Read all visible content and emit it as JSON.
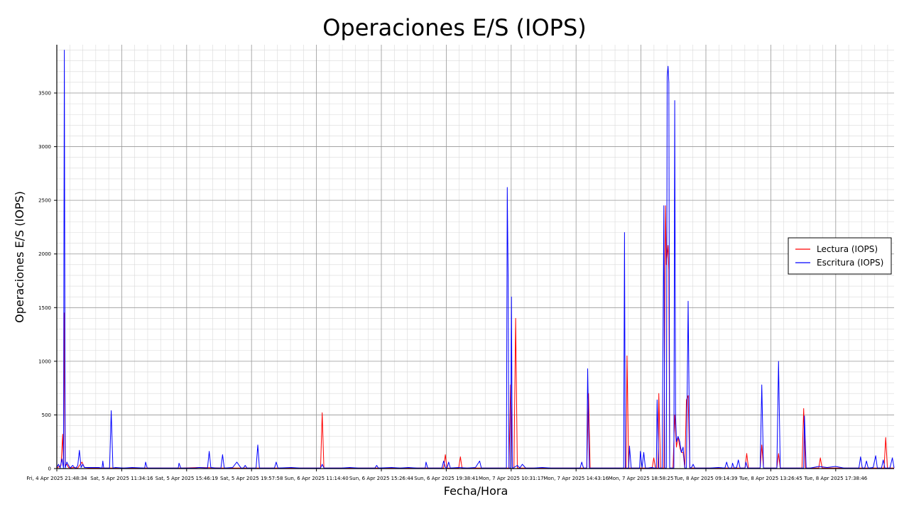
{
  "chart_data": {
    "type": "line",
    "title": "Operaciones E/S (IOPS)",
    "xlabel": "Fecha/Hora",
    "ylabel": "Operaciones E/S (IOPS)",
    "ylim": [
      0,
      3950
    ],
    "yticks": [
      0,
      500,
      1000,
      1500,
      2000,
      2500,
      3000,
      3500
    ],
    "xticks": [
      "Fri, 4 Apr 2025 21:48:34",
      "Sat, 5 Apr 2025 11:34:16",
      "Sat, 5 Apr 2025 15:46:19",
      "Sat, 5 Apr 2025 19:57:58",
      "Sun, 6 Apr 2025 11:14:40",
      "Sun, 6 Apr 2025 15:26:44",
      "Sun, 6 Apr 2025 19:38:41",
      "Mon, 7 Apr 2025 10:31:17",
      "Mon, 7 Apr 2025 14:43:16",
      "Mon, 7 Apr 2025 18:58:25",
      "Tue, 8 Apr 2025 09:14:39",
      "Tue, 8 Apr 2025 13:26:45",
      "Tue, 8 Apr 2025 17:38:46"
    ],
    "xrange": [
      0,
      1000
    ],
    "grid": true,
    "legend_position": "center-right",
    "series": [
      {
        "name": "Lectura (IOPS)",
        "color": "#ff0000",
        "points": [
          [
            0,
            5
          ],
          [
            5,
            30
          ],
          [
            7,
            320
          ],
          [
            8,
            20
          ],
          [
            9,
            1450
          ],
          [
            10,
            30
          ],
          [
            12,
            40
          ],
          [
            14,
            10
          ],
          [
            16,
            5
          ],
          [
            20,
            10
          ],
          [
            25,
            5
          ],
          [
            30,
            60
          ],
          [
            33,
            10
          ],
          [
            40,
            5
          ],
          [
            50,
            5
          ],
          [
            60,
            5
          ],
          [
            70,
            5
          ],
          [
            80,
            5
          ],
          [
            90,
            5
          ],
          [
            100,
            5
          ],
          [
            120,
            5
          ],
          [
            150,
            5
          ],
          [
            170,
            10
          ],
          [
            200,
            5
          ],
          [
            220,
            5
          ],
          [
            250,
            5
          ],
          [
            280,
            5
          ],
          [
            300,
            5
          ],
          [
            315,
            5
          ],
          [
            317,
            520
          ],
          [
            319,
            5
          ],
          [
            340,
            5
          ],
          [
            360,
            5
          ],
          [
            380,
            5
          ],
          [
            400,
            5
          ],
          [
            430,
            5
          ],
          [
            450,
            5
          ],
          [
            462,
            5
          ],
          [
            464,
            130
          ],
          [
            466,
            5
          ],
          [
            480,
            5
          ],
          [
            482,
            110
          ],
          [
            484,
            5
          ],
          [
            500,
            5
          ],
          [
            530,
            5
          ],
          [
            540,
            5
          ],
          [
            542,
            780
          ],
          [
            544,
            5
          ],
          [
            546,
            5
          ],
          [
            548,
            1400
          ],
          [
            550,
            5
          ],
          [
            570,
            5
          ],
          [
            590,
            5
          ],
          [
            610,
            5
          ],
          [
            630,
            5
          ],
          [
            633,
            5
          ],
          [
            635,
            700
          ],
          [
            637,
            5
          ],
          [
            660,
            5
          ],
          [
            680,
            5
          ],
          [
            681,
            1050
          ],
          [
            683,
            5
          ],
          [
            700,
            5
          ],
          [
            711,
            5
          ],
          [
            713,
            100
          ],
          [
            715,
            5
          ],
          [
            718,
            5
          ],
          [
            719,
            700
          ],
          [
            721,
            5
          ],
          [
            725,
            5
          ],
          [
            727,
            2450
          ],
          [
            728,
            1900
          ],
          [
            730,
            2080
          ],
          [
            731,
            1850
          ],
          [
            732,
            5
          ],
          [
            734,
            5
          ],
          [
            736,
            5
          ],
          [
            738,
            500
          ],
          [
            740,
            200
          ],
          [
            742,
            300
          ],
          [
            744,
            200
          ],
          [
            746,
            150
          ],
          [
            748,
            150
          ],
          [
            750,
            5
          ],
          [
            752,
            640
          ],
          [
            754,
            680
          ],
          [
            756,
            5
          ],
          [
            780,
            5
          ],
          [
            800,
            5
          ],
          [
            822,
            5
          ],
          [
            824,
            140
          ],
          [
            826,
            5
          ],
          [
            840,
            5
          ],
          [
            842,
            220
          ],
          [
            844,
            5
          ],
          [
            860,
            5
          ],
          [
            862,
            140
          ],
          [
            864,
            5
          ],
          [
            890,
            5
          ],
          [
            892,
            560
          ],
          [
            894,
            5
          ],
          [
            910,
            5
          ],
          [
            912,
            100
          ],
          [
            914,
            5
          ],
          [
            930,
            5
          ],
          [
            960,
            5
          ],
          [
            980,
            5
          ],
          [
            988,
            5
          ],
          [
            990,
            290
          ],
          [
            992,
            5
          ],
          [
            1000,
            5
          ]
        ]
      },
      {
        "name": "Escritura (IOPS)",
        "color": "#0000ff",
        "points": [
          [
            0,
            10
          ],
          [
            2,
            40
          ],
          [
            4,
            5
          ],
          [
            6,
            90
          ],
          [
            8,
            5
          ],
          [
            9,
            3900
          ],
          [
            10,
            5
          ],
          [
            12,
            60
          ],
          [
            14,
            30
          ],
          [
            16,
            5
          ],
          [
            19,
            30
          ],
          [
            21,
            10
          ],
          [
            23,
            5
          ],
          [
            25,
            30
          ],
          [
            27,
            170
          ],
          [
            29,
            10
          ],
          [
            31,
            40
          ],
          [
            33,
            10
          ],
          [
            40,
            10
          ],
          [
            50,
            10
          ],
          [
            54,
            5
          ],
          [
            55,
            70
          ],
          [
            56,
            5
          ],
          [
            63,
            5
          ],
          [
            65,
            540
          ],
          [
            67,
            5
          ],
          [
            70,
            10
          ],
          [
            80,
            5
          ],
          [
            90,
            10
          ],
          [
            105,
            5
          ],
          [
            106,
            60
          ],
          [
            108,
            5
          ],
          [
            120,
            5
          ],
          [
            130,
            5
          ],
          [
            140,
            5
          ],
          [
            145,
            5
          ],
          [
            146,
            50
          ],
          [
            148,
            5
          ],
          [
            165,
            5
          ],
          [
            170,
            10
          ],
          [
            180,
            5
          ],
          [
            182,
            160
          ],
          [
            184,
            10
          ],
          [
            190,
            5
          ],
          [
            196,
            5
          ],
          [
            198,
            130
          ],
          [
            200,
            5
          ],
          [
            210,
            10
          ],
          [
            215,
            60
          ],
          [
            220,
            5
          ],
          [
            223,
            5
          ],
          [
            225,
            30
          ],
          [
            227,
            5
          ],
          [
            235,
            5
          ],
          [
            238,
            5
          ],
          [
            240,
            220
          ],
          [
            242,
            5
          ],
          [
            250,
            5
          ],
          [
            260,
            5
          ],
          [
            262,
            60
          ],
          [
            264,
            5
          ],
          [
            280,
            10
          ],
          [
            290,
            5
          ],
          [
            300,
            5
          ],
          [
            315,
            5
          ],
          [
            317,
            40
          ],
          [
            319,
            5
          ],
          [
            330,
            5
          ],
          [
            340,
            5
          ],
          [
            350,
            10
          ],
          [
            360,
            5
          ],
          [
            380,
            5
          ],
          [
            382,
            30
          ],
          [
            384,
            5
          ],
          [
            400,
            10
          ],
          [
            410,
            5
          ],
          [
            420,
            10
          ],
          [
            430,
            5
          ],
          [
            440,
            5
          ],
          [
            441,
            60
          ],
          [
            443,
            5
          ],
          [
            460,
            5
          ],
          [
            462,
            70
          ],
          [
            464,
            10
          ],
          [
            466,
            5
          ],
          [
            468,
            60
          ],
          [
            470,
            5
          ],
          [
            480,
            10
          ],
          [
            490,
            5
          ],
          [
            500,
            10
          ],
          [
            505,
            70
          ],
          [
            507,
            5
          ],
          [
            520,
            5
          ],
          [
            535,
            5
          ],
          [
            537,
            5
          ],
          [
            538,
            2620
          ],
          [
            539,
            1800
          ],
          [
            540,
            5
          ],
          [
            542,
            5
          ],
          [
            543,
            1600
          ],
          [
            544,
            5
          ],
          [
            545,
            5
          ],
          [
            550,
            30
          ],
          [
            553,
            5
          ],
          [
            556,
            40
          ],
          [
            560,
            5
          ],
          [
            570,
            5
          ],
          [
            580,
            10
          ],
          [
            590,
            5
          ],
          [
            600,
            5
          ],
          [
            610,
            5
          ],
          [
            620,
            5
          ],
          [
            625,
            5
          ],
          [
            627,
            60
          ],
          [
            629,
            5
          ],
          [
            633,
            5
          ],
          [
            634,
            930
          ],
          [
            636,
            5
          ],
          [
            650,
            5
          ],
          [
            660,
            5
          ],
          [
            665,
            5
          ],
          [
            670,
            5
          ],
          [
            675,
            5
          ],
          [
            677,
            5
          ],
          [
            678,
            2200
          ],
          [
            679,
            5
          ],
          [
            681,
            5
          ],
          [
            683,
            5
          ],
          [
            684,
            210
          ],
          [
            686,
            5
          ],
          [
            690,
            5
          ],
          [
            696,
            5
          ],
          [
            697,
            160
          ],
          [
            699,
            5
          ],
          [
            701,
            150
          ],
          [
            703,
            5
          ],
          [
            706,
            5
          ],
          [
            710,
            10
          ],
          [
            714,
            5
          ],
          [
            716,
            5
          ],
          [
            717,
            640
          ],
          [
            719,
            5
          ],
          [
            723,
            5
          ],
          [
            725,
            2450
          ],
          [
            726,
            5
          ],
          [
            728,
            5
          ],
          [
            729,
            3650
          ],
          [
            730,
            3750
          ],
          [
            731,
            3600
          ],
          [
            732,
            5
          ],
          [
            735,
            5
          ],
          [
            737,
            5
          ],
          [
            738,
            3430
          ],
          [
            739,
            500
          ],
          [
            740,
            250
          ],
          [
            742,
            300
          ],
          [
            744,
            250
          ],
          [
            746,
            150
          ],
          [
            748,
            200
          ],
          [
            750,
            5
          ],
          [
            752,
            5
          ],
          [
            754,
            1560
          ],
          [
            756,
            5
          ],
          [
            758,
            10
          ],
          [
            760,
            40
          ],
          [
            762,
            5
          ],
          [
            780,
            5
          ],
          [
            790,
            10
          ],
          [
            798,
            5
          ],
          [
            800,
            60
          ],
          [
            802,
            5
          ],
          [
            806,
            5
          ],
          [
            807,
            50
          ],
          [
            809,
            5
          ],
          [
            812,
            10
          ],
          [
            814,
            80
          ],
          [
            816,
            5
          ],
          [
            822,
            5
          ],
          [
            823,
            60
          ],
          [
            825,
            5
          ],
          [
            840,
            5
          ],
          [
            842,
            780
          ],
          [
            844,
            5
          ],
          [
            860,
            5
          ],
          [
            862,
            1000
          ],
          [
            864,
            5
          ],
          [
            880,
            5
          ],
          [
            890,
            5
          ],
          [
            892,
            5
          ],
          [
            893,
            490
          ],
          [
            895,
            5
          ],
          [
            900,
            5
          ],
          [
            910,
            20
          ],
          [
            920,
            10
          ],
          [
            930,
            20
          ],
          [
            940,
            5
          ],
          [
            950,
            5
          ],
          [
            958,
            5
          ],
          [
            960,
            110
          ],
          [
            962,
            5
          ],
          [
            965,
            5
          ],
          [
            967,
            70
          ],
          [
            969,
            5
          ],
          [
            975,
            10
          ],
          [
            978,
            120
          ],
          [
            980,
            5
          ],
          [
            985,
            5
          ],
          [
            987,
            80
          ],
          [
            989,
            5
          ],
          [
            995,
            5
          ],
          [
            998,
            100
          ],
          [
            1000,
            5
          ]
        ]
      }
    ]
  }
}
